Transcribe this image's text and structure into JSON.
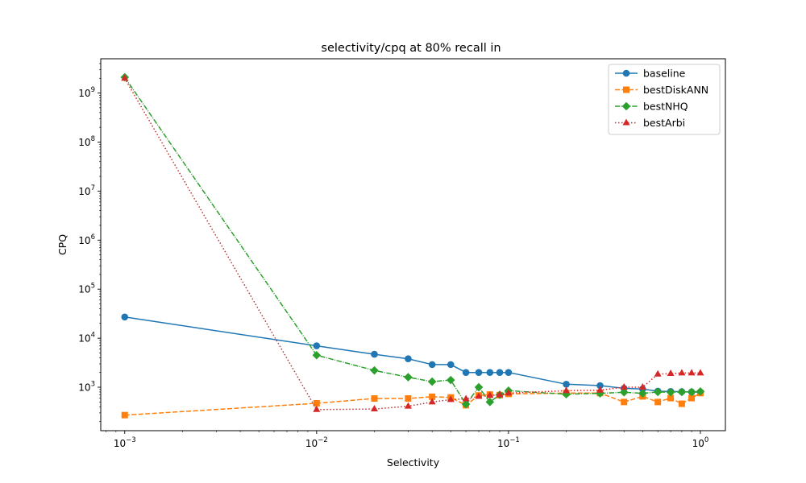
{
  "chart_data": {
    "type": "line",
    "title": "selectivity/cpq at 80% recall in",
    "xlabel": "Selectivity",
    "ylabel": "CPQ",
    "xscale": "log",
    "yscale": "log",
    "xlim": [
      0.00075,
      1.35
    ],
    "ylim": [
      130,
      5000000000
    ],
    "xticks": [
      {
        "value": 0.001,
        "base": "10",
        "exp": "−3"
      },
      {
        "value": 0.01,
        "base": "10",
        "exp": "−2"
      },
      {
        "value": 0.1,
        "base": "10",
        "exp": "−1"
      },
      {
        "value": 1,
        "base": "10",
        "exp": "0"
      }
    ],
    "yticks": [
      {
        "value": 1000,
        "base": "10",
        "exp": "3"
      },
      {
        "value": 10000,
        "base": "10",
        "exp": "4"
      },
      {
        "value": 100000,
        "base": "10",
        "exp": "5"
      },
      {
        "value": 1000000,
        "base": "10",
        "exp": "6"
      },
      {
        "value": 10000000,
        "base": "10",
        "exp": "7"
      },
      {
        "value": 100000000,
        "base": "10",
        "exp": "8"
      },
      {
        "value": 1000000000,
        "base": "10",
        "exp": "9"
      }
    ],
    "grid": false,
    "legend_position": "top-right",
    "series": [
      {
        "name": "baseline",
        "color": "#1f77b4",
        "linestyle": "solid",
        "marker": "circle",
        "points": [
          [
            0.001,
            27000
          ],
          [
            0.01,
            7000
          ],
          [
            0.02,
            4700
          ],
          [
            0.03,
            3800
          ],
          [
            0.04,
            2900
          ],
          [
            0.05,
            2900
          ],
          [
            0.06,
            2000
          ],
          [
            0.07,
            2000
          ],
          [
            0.08,
            2000
          ],
          [
            0.09,
            2000
          ],
          [
            0.1,
            2000
          ],
          [
            0.2,
            1150
          ],
          [
            0.3,
            1080
          ],
          [
            0.4,
            950
          ],
          [
            0.5,
            920
          ],
          [
            0.6,
            830
          ],
          [
            0.7,
            820
          ],
          [
            0.8,
            810
          ],
          [
            0.9,
            800
          ],
          [
            1.0,
            790
          ]
        ]
      },
      {
        "name": "bestDiskANN",
        "color": "#ff7f0e",
        "linestyle": "dashed",
        "marker": "square",
        "points": [
          [
            0.001,
            270
          ],
          [
            0.01,
            470
          ],
          [
            0.02,
            590
          ],
          [
            0.03,
            590
          ],
          [
            0.04,
            640
          ],
          [
            0.05,
            620
          ],
          [
            0.06,
            430
          ],
          [
            0.07,
            680
          ],
          [
            0.08,
            710
          ],
          [
            0.09,
            690
          ],
          [
            0.1,
            730
          ],
          [
            0.2,
            760
          ],
          [
            0.3,
            760
          ],
          [
            0.4,
            500
          ],
          [
            0.5,
            650
          ],
          [
            0.6,
            500
          ],
          [
            0.7,
            600
          ],
          [
            0.8,
            460
          ],
          [
            0.9,
            600
          ],
          [
            1.0,
            760
          ]
        ]
      },
      {
        "name": "bestNHQ",
        "color": "#2ca02c",
        "linestyle": "dashdot",
        "marker": "diamond",
        "points": [
          [
            0.001,
            2100000000
          ],
          [
            0.01,
            4500
          ],
          [
            0.02,
            2200
          ],
          [
            0.03,
            1600
          ],
          [
            0.04,
            1300
          ],
          [
            0.05,
            1400
          ],
          [
            0.06,
            450
          ],
          [
            0.07,
            1000
          ],
          [
            0.08,
            500
          ],
          [
            0.09,
            700
          ],
          [
            0.1,
            850
          ],
          [
            0.2,
            720
          ],
          [
            0.3,
            750
          ],
          [
            0.4,
            790
          ],
          [
            0.5,
            750
          ],
          [
            0.6,
            800
          ],
          [
            0.7,
            790
          ],
          [
            0.8,
            800
          ],
          [
            0.9,
            800
          ],
          [
            1.0,
            820
          ]
        ]
      },
      {
        "name": "bestArbi",
        "color": "#d62728",
        "linestyle": "dotted",
        "marker": "triangle",
        "points": [
          [
            0.001,
            2000000000
          ],
          [
            0.01,
            350
          ],
          [
            0.02,
            360
          ],
          [
            0.03,
            410
          ],
          [
            0.04,
            500
          ],
          [
            0.05,
            560
          ],
          [
            0.06,
            580
          ],
          [
            0.07,
            650
          ],
          [
            0.08,
            680
          ],
          [
            0.09,
            700
          ],
          [
            0.1,
            760
          ],
          [
            0.2,
            850
          ],
          [
            0.3,
            870
          ],
          [
            0.4,
            1000
          ],
          [
            0.5,
            1000
          ],
          [
            0.6,
            1850
          ],
          [
            0.7,
            1900
          ],
          [
            0.8,
            1950
          ],
          [
            0.9,
            1950
          ],
          [
            1.0,
            1950
          ]
        ]
      }
    ]
  }
}
